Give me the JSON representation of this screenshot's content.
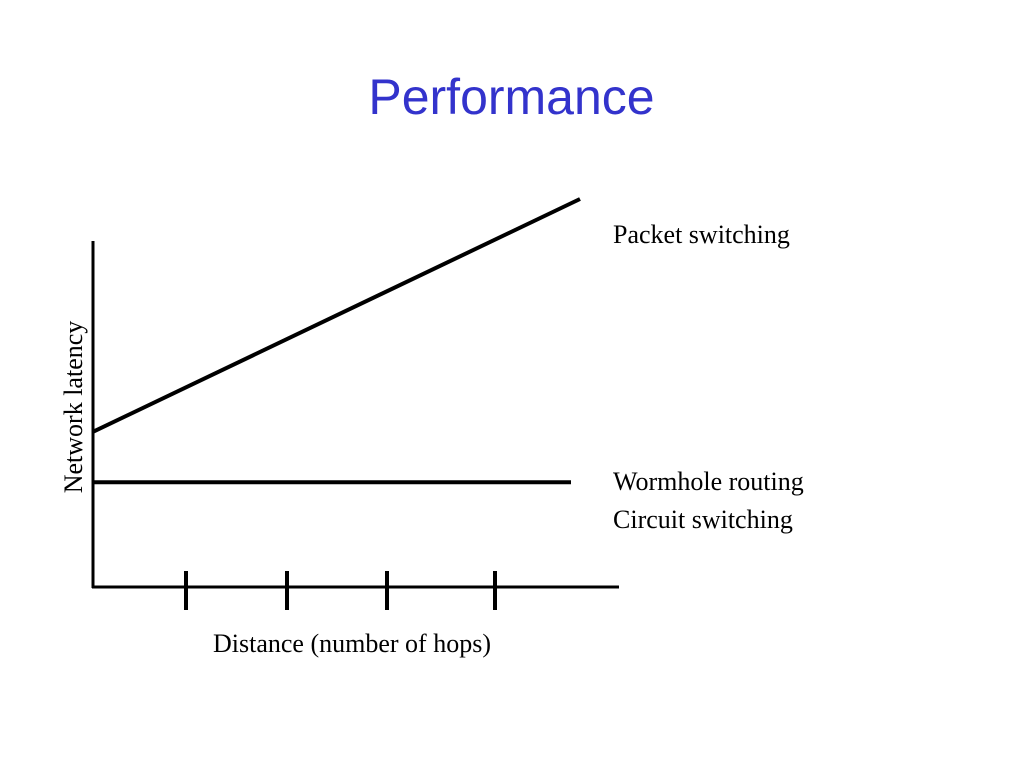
{
  "slide": {
    "title": "Performance",
    "title_color": "#3333cc"
  },
  "chart_data": {
    "type": "line",
    "title": "Performance",
    "xlabel": "Distance (number of hops)",
    "ylabel": "Network latency",
    "x_ticks": 4,
    "grid": false,
    "series": [
      {
        "name": "Packet switching",
        "trend": "increasing",
        "values": [
          0.4,
          1.0
        ]
      },
      {
        "name": "Wormhole routing\nCircuit switching",
        "trend": "constant",
        "values": [
          0.27,
          0.27
        ]
      }
    ],
    "series_labels": [
      [
        "Packet switching"
      ],
      [
        "Wormhole routing",
        "Circuit switching"
      ]
    ],
    "line_color": "#000000"
  }
}
